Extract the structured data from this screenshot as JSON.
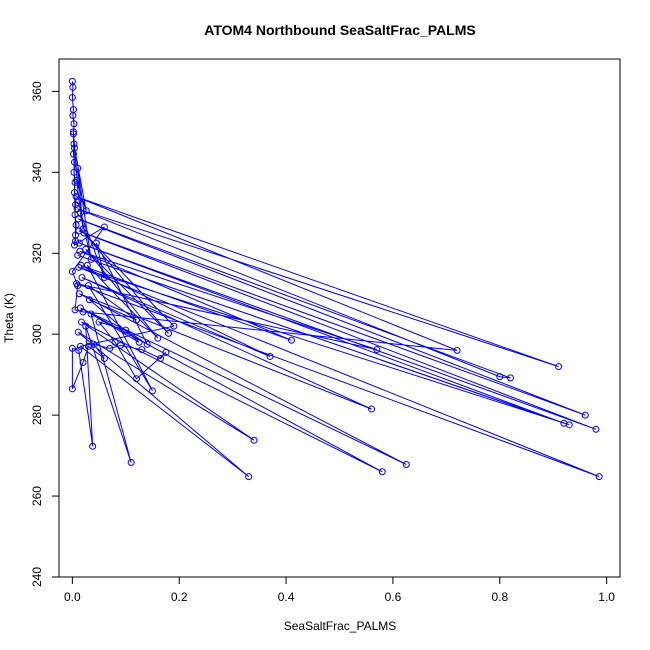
{
  "chart_data": {
    "type": "line",
    "title": "ATOM4 Northbound SeaSaltFrac_PALMS",
    "xlabel": "SeaSaltFrac_PALMS",
    "ylabel": "Theta (K)",
    "xlim": [
      -0.025,
      1.025
    ],
    "ylim": [
      240,
      368
    ],
    "xticks": [
      0.0,
      0.2,
      0.4,
      0.6,
      0.8,
      1.0
    ],
    "xtick_labels": [
      "0.0",
      "0.2",
      "0.4",
      "0.6",
      "0.8",
      "1.0"
    ],
    "yticks": [
      240,
      260,
      280,
      300,
      320,
      340,
      360
    ],
    "ytick_labels": [
      "240",
      "260",
      "280",
      "300",
      "320",
      "340",
      "360"
    ],
    "grid": false,
    "legend": "none",
    "series_color": "#0000ff",
    "points": [
      [
        0.0,
        362.5
      ],
      [
        0.001,
        361.0
      ],
      [
        0.0,
        358.5
      ],
      [
        0.002,
        355.5
      ],
      [
        0.001,
        354.0
      ],
      [
        0.003,
        352.0
      ],
      [
        0.002,
        349.5
      ],
      [
        0.003,
        347.0
      ],
      [
        0.002,
        344.5
      ],
      [
        0.004,
        342.5
      ],
      [
        0.003,
        340.0
      ],
      [
        0.005,
        337.5
      ],
      [
        0.004,
        335.0
      ],
      [
        0.006,
        332.0
      ],
      [
        0.005,
        329.5
      ],
      [
        0.007,
        327.0
      ],
      [
        0.006,
        324.5
      ],
      [
        0.004,
        322.0
      ],
      [
        0.06,
        326.5
      ],
      [
        0.0,
        315.5
      ],
      [
        0.01,
        312.0
      ],
      [
        0.005,
        306.0
      ],
      [
        0.02,
        305.5
      ],
      [
        0.72,
        296.0
      ],
      [
        0.007,
        334.0
      ],
      [
        0.91,
        292.0
      ],
      [
        0.009,
        331.0
      ],
      [
        0.8,
        289.5
      ],
      [
        0.82,
        289.2
      ],
      [
        0.011,
        328.5
      ],
      [
        0.96,
        280.0
      ],
      [
        0.012,
        325.5
      ],
      [
        0.98,
        276.5
      ],
      [
        0.013,
        322.5
      ],
      [
        0.92,
        278.0
      ],
      [
        0.01,
        319.5
      ],
      [
        0.93,
        277.6
      ],
      [
        0.012,
        316.5
      ],
      [
        0.986,
        264.8
      ],
      [
        0.008,
        312.5
      ],
      [
        0.57,
        296.2
      ],
      [
        0.014,
        320.5
      ],
      [
        0.41,
        298.5
      ],
      [
        0.016,
        317.0
      ],
      [
        0.37,
        294.5
      ],
      [
        0.018,
        314.0
      ],
      [
        0.56,
        281.5
      ],
      [
        0.013,
        310.0
      ],
      [
        0.625,
        267.8
      ],
      [
        0.015,
        306.5
      ],
      [
        0.58,
        266.0
      ],
      [
        0.017,
        303.0
      ],
      [
        0.34,
        273.8
      ],
      [
        0.011,
        300.5
      ],
      [
        0.33,
        264.8
      ],
      [
        0.015,
        297.0
      ],
      [
        0.19,
        302.0
      ],
      [
        0.022,
        325.0
      ],
      [
        0.18,
        300.2
      ],
      [
        0.025,
        321.0
      ],
      [
        0.16,
        299.0
      ],
      [
        0.028,
        317.0
      ],
      [
        0.15,
        286.0
      ],
      [
        0.03,
        312.0
      ],
      [
        0.12,
        303.5
      ],
      [
        0.032,
        308.5
      ],
      [
        0.125,
        298.0
      ],
      [
        0.035,
        305.0
      ],
      [
        0.11,
        268.3
      ],
      [
        0.025,
        302.0
      ],
      [
        0.038,
        272.3
      ],
      [
        0.012,
        296.0
      ],
      [
        0.0,
        296.5
      ],
      [
        0.0,
        286.5
      ],
      [
        0.02,
        293.0
      ],
      [
        0.03,
        297.0
      ],
      [
        0.06,
        294.0
      ],
      [
        0.04,
        297.5
      ],
      [
        0.07,
        296.5
      ],
      [
        0.09,
        297.2
      ],
      [
        0.13,
        296.2
      ],
      [
        0.165,
        294.0
      ],
      [
        0.175,
        295.5
      ],
      [
        0.12,
        289.0
      ],
      [
        0.08,
        298.0
      ],
      [
        0.05,
        303.0
      ],
      [
        0.1,
        301.0
      ],
      [
        0.14,
        297.5
      ],
      [
        0.045,
        322.5
      ],
      [
        0.06,
        314.0
      ],
      [
        0.015,
        330.0
      ],
      [
        0.035,
        318.5
      ],
      [
        0.01,
        341.0
      ],
      [
        0.02,
        326.0
      ],
      [
        0.008,
        338.0
      ],
      [
        0.026,
        330.5
      ],
      [
        0.004,
        346.0
      ],
      [
        0.012,
        333.0
      ],
      [
        0.002,
        350.0
      ],
      [
        0.006,
        323.0
      ]
    ]
  }
}
